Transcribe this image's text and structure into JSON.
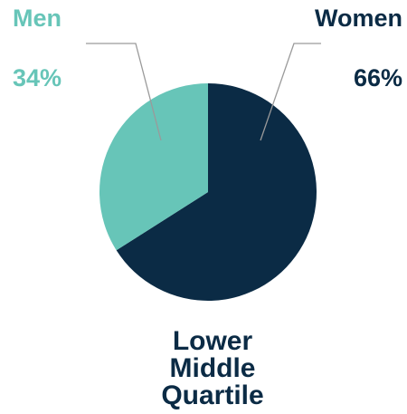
{
  "chart_data": {
    "type": "pie",
    "title": "Lower Middle Quartile",
    "categories": [
      "Women",
      "Men"
    ],
    "values": [
      66,
      34
    ],
    "value_labels": [
      "66%",
      "34%"
    ],
    "colors": [
      "#0b2b45",
      "#67c5b8"
    ]
  }
}
